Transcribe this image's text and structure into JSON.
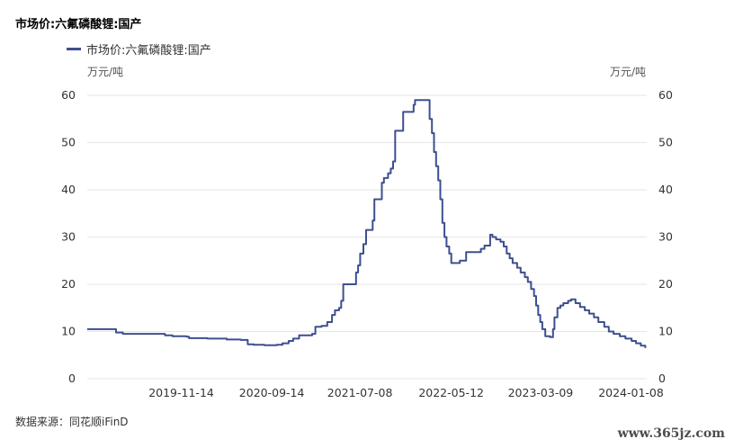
{
  "chart_data": {
    "type": "line",
    "title": "市场价:六氟磷酸锂:国产",
    "unit_left": "万元/吨",
    "unit_right": "万元/吨",
    "source": "数据来源：同花顺iFinD",
    "watermark": "www.365jz.com",
    "ylim": [
      0,
      60
    ],
    "yticks": [
      0,
      10,
      20,
      30,
      40,
      50,
      60
    ],
    "xlim": [
      "2019-01-01",
      "2024-03-01"
    ],
    "xticks": [
      "2019-11-14",
      "2020-09-14",
      "2021-07-08",
      "2022-05-12",
      "2023-03-09",
      "2024-01-08"
    ],
    "grid": true,
    "legend_position": "top-left",
    "series": [
      {
        "name": "市场价:六氟磷酸锂:国产",
        "color": "#3e4f8f",
        "step": true,
        "points": [
          [
            "2019-01-01",
            10.5
          ],
          [
            "2019-04-01",
            10.5
          ],
          [
            "2019-04-08",
            9.8
          ],
          [
            "2019-05-01",
            9.5
          ],
          [
            "2019-09-01",
            9.5
          ],
          [
            "2019-09-20",
            9.2
          ],
          [
            "2019-10-15",
            9.0
          ],
          [
            "2019-12-01",
            8.9
          ],
          [
            "2019-12-10",
            8.6
          ],
          [
            "2020-02-10",
            8.5
          ],
          [
            "2020-04-15",
            8.3
          ],
          [
            "2020-06-01",
            8.2
          ],
          [
            "2020-06-25",
            7.3
          ],
          [
            "2020-07-15",
            7.2
          ],
          [
            "2020-08-20",
            7.1
          ],
          [
            "2020-10-01",
            7.2
          ],
          [
            "2020-10-20",
            7.5
          ],
          [
            "2020-11-10",
            8.0
          ],
          [
            "2020-11-25",
            8.5
          ],
          [
            "2020-12-15",
            9.2
          ],
          [
            "2021-01-28",
            9.5
          ],
          [
            "2021-02-08",
            11.0
          ],
          [
            "2021-03-01",
            11.2
          ],
          [
            "2021-03-20",
            12.0
          ],
          [
            "2021-04-05",
            13.5
          ],
          [
            "2021-04-15",
            14.5
          ],
          [
            "2021-04-29",
            15.0
          ],
          [
            "2021-05-06",
            16.5
          ],
          [
            "2021-05-13",
            20.0
          ],
          [
            "2021-06-25",
            22.5
          ],
          [
            "2021-07-02",
            24.0
          ],
          [
            "2021-07-09",
            26.5
          ],
          [
            "2021-07-20",
            28.5
          ],
          [
            "2021-07-29",
            31.5
          ],
          [
            "2021-08-20",
            33.5
          ],
          [
            "2021-08-26",
            38.0
          ],
          [
            "2021-09-20",
            41.5
          ],
          [
            "2021-09-27",
            42.5
          ],
          [
            "2021-10-11",
            43.5
          ],
          [
            "2021-10-20",
            44.5
          ],
          [
            "2021-10-28",
            46.0
          ],
          [
            "2021-11-04",
            52.5
          ],
          [
            "2021-12-01",
            56.5
          ],
          [
            "2022-01-05",
            58.0
          ],
          [
            "2022-01-10",
            59.0
          ],
          [
            "2022-02-28",
            55.0
          ],
          [
            "2022-03-08",
            52.0
          ],
          [
            "2022-03-15",
            48.0
          ],
          [
            "2022-03-22",
            45.0
          ],
          [
            "2022-03-29",
            42.0
          ],
          [
            "2022-04-05",
            38.0
          ],
          [
            "2022-04-12",
            33.0
          ],
          [
            "2022-04-19",
            30.0
          ],
          [
            "2022-04-26",
            28.0
          ],
          [
            "2022-05-05",
            26.5
          ],
          [
            "2022-05-12",
            24.5
          ],
          [
            "2022-06-10",
            25.0
          ],
          [
            "2022-07-01",
            26.8
          ],
          [
            "2022-08-20",
            27.5
          ],
          [
            "2022-09-01",
            28.2
          ],
          [
            "2022-09-20",
            30.5
          ],
          [
            "2022-09-28",
            30.0
          ],
          [
            "2022-10-10",
            29.5
          ],
          [
            "2022-10-25",
            29.0
          ],
          [
            "2022-11-05",
            28.0
          ],
          [
            "2022-11-15",
            26.5
          ],
          [
            "2022-11-25",
            25.5
          ],
          [
            "2022-12-05",
            24.5
          ],
          [
            "2022-12-20",
            23.5
          ],
          [
            "2023-01-01",
            22.5
          ],
          [
            "2023-01-15",
            21.5
          ],
          [
            "2023-01-25",
            20.5
          ],
          [
            "2023-02-05",
            19.0
          ],
          [
            "2023-02-15",
            17.5
          ],
          [
            "2023-02-22",
            15.5
          ],
          [
            "2023-03-01",
            13.5
          ],
          [
            "2023-03-08",
            12.0
          ],
          [
            "2023-03-15",
            10.5
          ],
          [
            "2023-03-25",
            9.0
          ],
          [
            "2023-04-10",
            8.8
          ],
          [
            "2023-04-20",
            10.5
          ],
          [
            "2023-04-25",
            13.0
          ],
          [
            "2023-05-05",
            15.0
          ],
          [
            "2023-05-15",
            15.5
          ],
          [
            "2023-05-25",
            16.0
          ],
          [
            "2023-06-10",
            16.5
          ],
          [
            "2023-06-20",
            16.8
          ],
          [
            "2023-07-05",
            16.0
          ],
          [
            "2023-07-20",
            15.2
          ],
          [
            "2023-08-05",
            14.5
          ],
          [
            "2023-08-20",
            13.8
          ],
          [
            "2023-09-05",
            13.0
          ],
          [
            "2023-09-20",
            12.0
          ],
          [
            "2023-10-10",
            11.0
          ],
          [
            "2023-10-25",
            10.0
          ],
          [
            "2023-11-10",
            9.5
          ],
          [
            "2023-12-01",
            9.0
          ],
          [
            "2023-12-20",
            8.5
          ],
          [
            "2024-01-10",
            8.0
          ],
          [
            "2024-01-25",
            7.5
          ],
          [
            "2024-02-10",
            7.0
          ],
          [
            "2024-02-25",
            6.5
          ]
        ]
      }
    ]
  }
}
